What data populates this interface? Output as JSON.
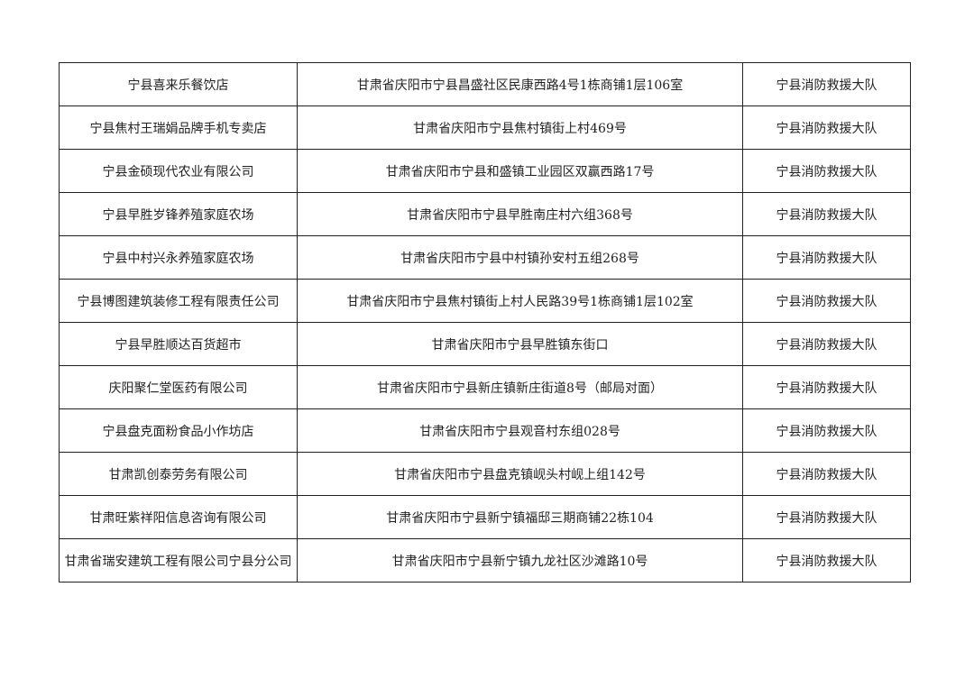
{
  "rows": [
    {
      "name": "宁县喜来乐餐饮店",
      "address": "甘肃省庆阳市宁县昌盛社区民康西路4号1栋商铺1层106室",
      "unit": "宁县消防救援大队"
    },
    {
      "name": "宁县焦村王瑞娟品牌手机专卖店",
      "address": "甘肃省庆阳市宁县焦村镇街上村469号",
      "unit": "宁县消防救援大队"
    },
    {
      "name": "宁县金硕现代农业有限公司",
      "address": "甘肃省庆阳市宁县和盛镇工业园区双赢西路17号",
      "unit": "宁县消防救援大队"
    },
    {
      "name": "宁县早胜岁锋养殖家庭农场",
      "address": "甘肃省庆阳市宁县早胜南庄村六组368号",
      "unit": "宁县消防救援大队"
    },
    {
      "name": "宁县中村兴永养殖家庭农场",
      "address": "甘肃省庆阳市宁县中村镇孙安村五组268号",
      "unit": "宁县消防救援大队"
    },
    {
      "name": "宁县博图建筑装修工程有限责任公司",
      "address": "甘肃省庆阳市宁县焦村镇街上村人民路39号1栋商铺1层102室",
      "unit": "宁县消防救援大队"
    },
    {
      "name": "宁县早胜顺达百货超市",
      "address": "甘肃省庆阳市宁县早胜镇东街口",
      "unit": "宁县消防救援大队"
    },
    {
      "name": "庆阳聚仁堂医药有限公司",
      "address": "甘肃省庆阳市宁县新庄镇新庄街道8号（邮局对面）",
      "unit": "宁县消防救援大队"
    },
    {
      "name": "宁县盘克面粉食品小作坊店",
      "address": "甘肃省庆阳市宁县观音村东组028号",
      "unit": "宁县消防救援大队"
    },
    {
      "name": "甘肃凯创泰劳务有限公司",
      "address": "甘肃省庆阳市宁县盘克镇岘头村岘上组142号",
      "unit": "宁县消防救援大队"
    },
    {
      "name": "甘肃旺紫祥阳信息咨询有限公司",
      "address": "甘肃省庆阳市宁县新宁镇福邸三期商铺22栋104",
      "unit": "宁县消防救援大队"
    },
    {
      "name": "甘肃省瑞安建筑工程有限公司宁县分公司",
      "address": "甘肃省庆阳市宁县新宁镇九龙社区沙滩路10号",
      "unit": "宁县消防救援大队"
    }
  ]
}
